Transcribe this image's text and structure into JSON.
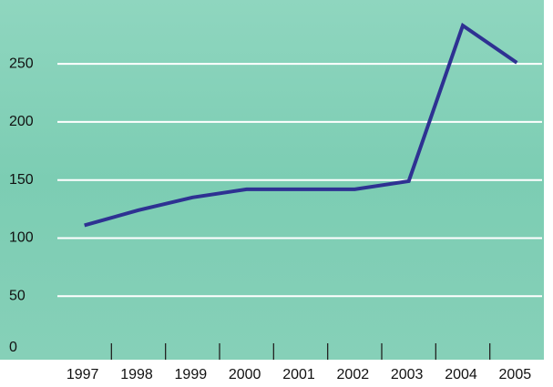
{
  "chart_data": {
    "type": "line",
    "categories": [
      "1997",
      "1998",
      "1999",
      "2000",
      "2001",
      "2002",
      "2003",
      "2004",
      "2005"
    ],
    "series": [
      {
        "color": "#2e3192",
        "values": [
          111,
          124,
          135,
          142,
          142,
          142,
          149,
          283,
          251
        ]
      }
    ],
    "ylim": [
      0,
      305
    ],
    "yticks": [
      0,
      50,
      100,
      150,
      200,
      250
    ],
    "grid": true
  }
}
